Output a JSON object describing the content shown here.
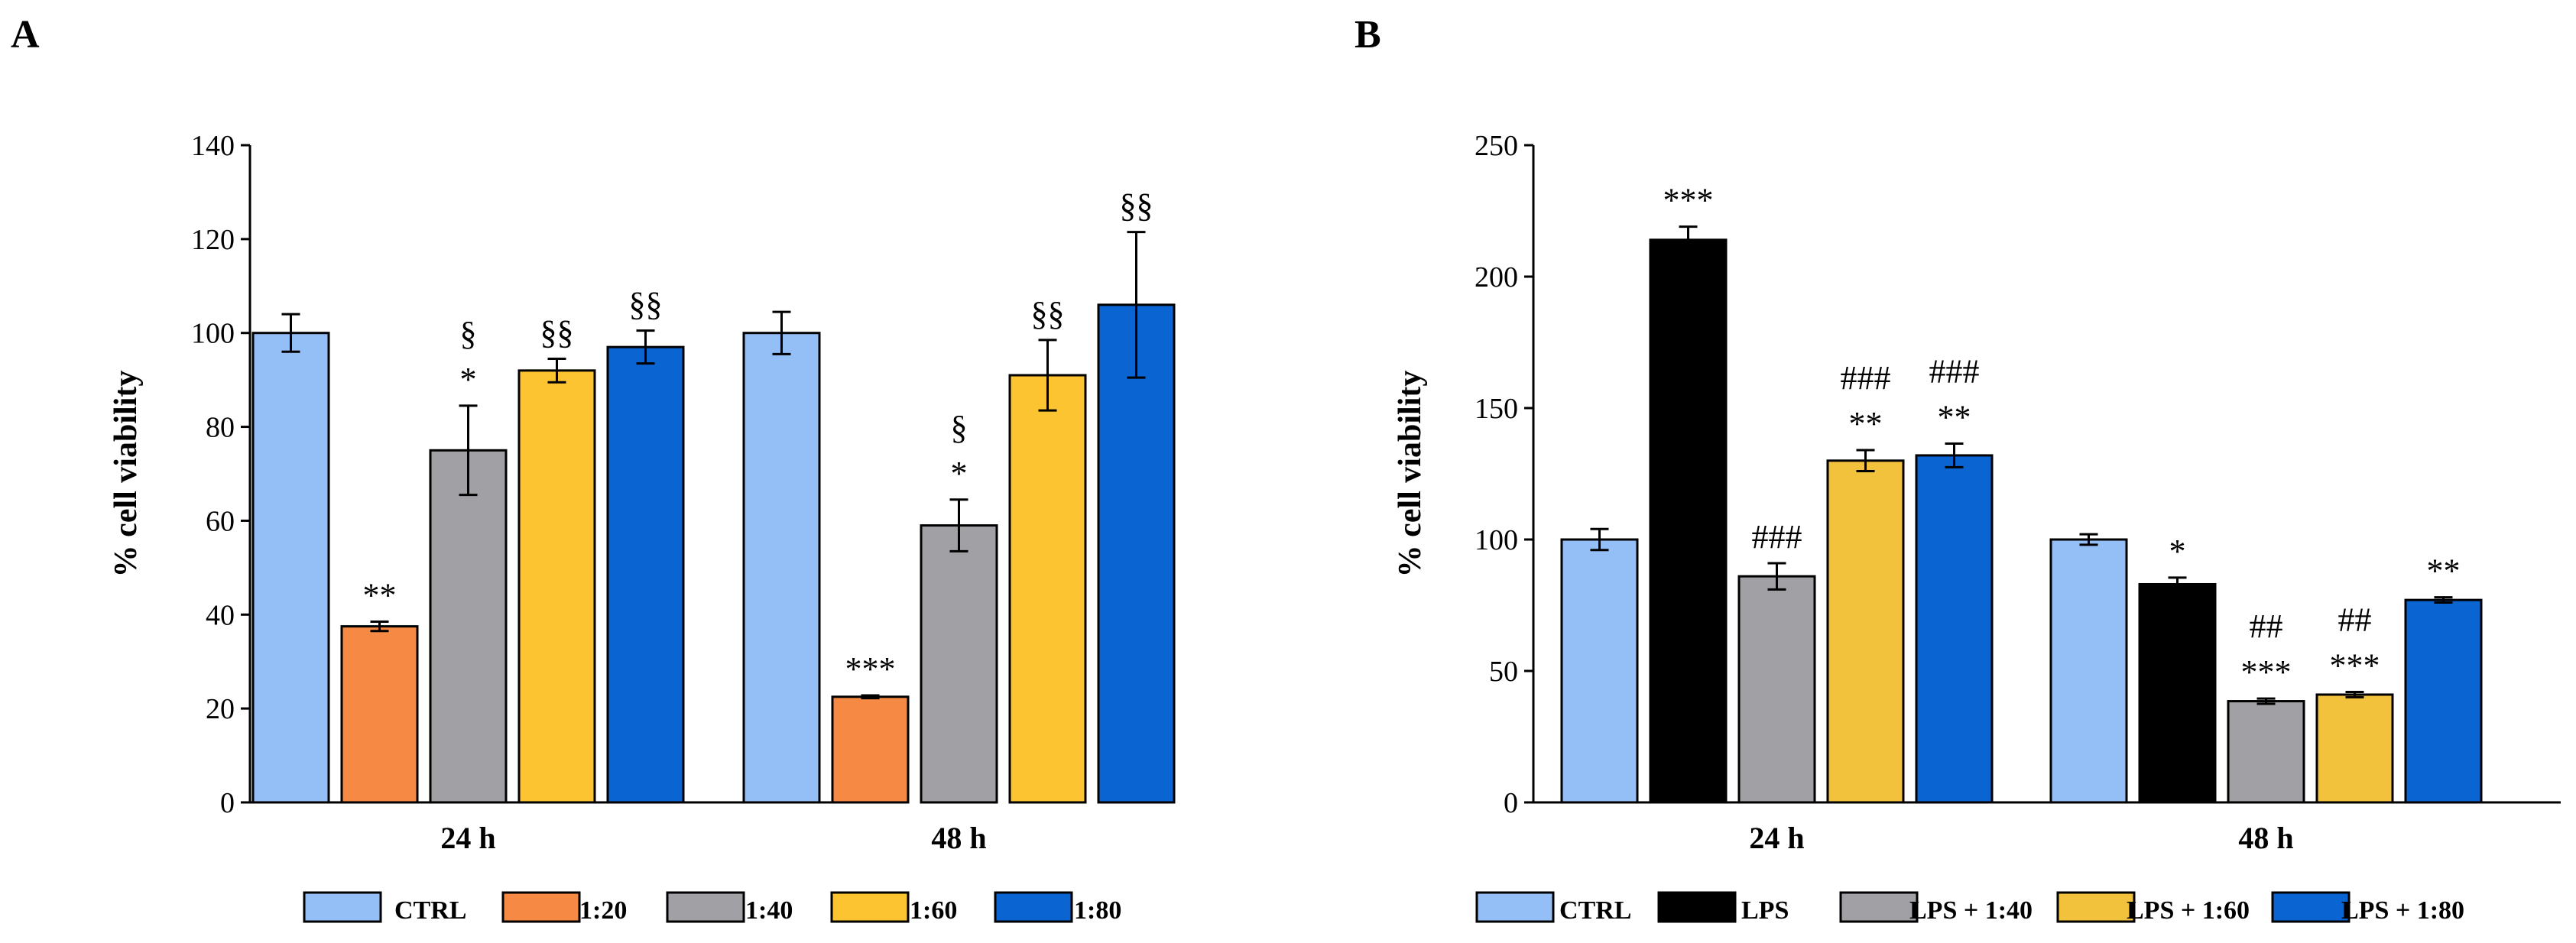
{
  "chart_data": [
    {
      "panel": "A",
      "type": "bar",
      "ylabel": "% cell viability",
      "ylim": [
        0,
        140
      ],
      "yticks": [
        "0",
        "20",
        "40",
        "60",
        "80",
        "100",
        "120",
        "140"
      ],
      "categories": [
        "24 h",
        "48 h"
      ],
      "series": [
        {
          "name": "CTRL",
          "color": "#93bff6",
          "values": [
            100,
            100
          ],
          "errors": [
            4,
            4.5
          ],
          "annotations": [
            [],
            []
          ]
        },
        {
          "name": "1:20",
          "color": "#f68a44",
          "values": [
            37.5,
            22.5
          ],
          "errors": [
            1,
            0.3
          ],
          "annotations": [
            [
              "**"
            ],
            [
              "***"
            ]
          ]
        },
        {
          "name": "1:40",
          "color": "#a1a1a5",
          "values": [
            75,
            59
          ],
          "errors": [
            9.5,
            5.5
          ],
          "annotations": [
            [
              "*",
              "§"
            ],
            [
              "*",
              "§"
            ]
          ]
        },
        {
          "name": "1:60",
          "color": "#fcc431",
          "values": [
            92,
            91
          ],
          "errors": [
            2.5,
            7.5
          ],
          "annotations": [
            [
              "§§"
            ],
            [
              "§§"
            ]
          ]
        },
        {
          "name": "1:80",
          "color": "#0a64d2",
          "values": [
            97,
            106
          ],
          "errors": [
            3.5,
            15.5
          ],
          "annotations": [
            [
              "§§"
            ],
            [
              "§§"
            ]
          ]
        }
      ]
    },
    {
      "panel": "B",
      "type": "bar",
      "ylabel": "% cell viability",
      "ylim": [
        0,
        250
      ],
      "yticks": [
        "0",
        "50",
        "100",
        "150",
        "200",
        "250"
      ],
      "categories": [
        "24 h",
        "48 h"
      ],
      "series": [
        {
          "name": "CTRL",
          "color": "#93bff6",
          "values": [
            100,
            100
          ],
          "errors": [
            4,
            2
          ],
          "annotations": [
            [],
            []
          ]
        },
        {
          "name": "LPS",
          "color": "#000000",
          "values": [
            214,
            83
          ],
          "errors": [
            5,
            2.5
          ],
          "annotations": [
            [
              "***"
            ],
            [
              "*"
            ]
          ]
        },
        {
          "name": "LPS + 1:40",
          "color": "#a1a1a5",
          "values": [
            86,
            38.5
          ],
          "errors": [
            5,
            1
          ],
          "annotations": [
            [
              "###"
            ],
            [
              "***",
              "##"
            ]
          ]
        },
        {
          "name": "LPS + 1:60",
          "color": "#f3c23d",
          "values": [
            130,
            41
          ],
          "errors": [
            4,
            1
          ],
          "annotations": [
            [
              "**",
              "###"
            ],
            [
              "***",
              "##"
            ]
          ]
        },
        {
          "name": "LPS + 1:80",
          "color": "#0a64d2",
          "values": [
            132,
            77
          ],
          "errors": [
            4.5,
            1
          ],
          "annotations": [
            [
              "**",
              "###"
            ],
            [
              "**"
            ]
          ]
        }
      ]
    }
  ]
}
